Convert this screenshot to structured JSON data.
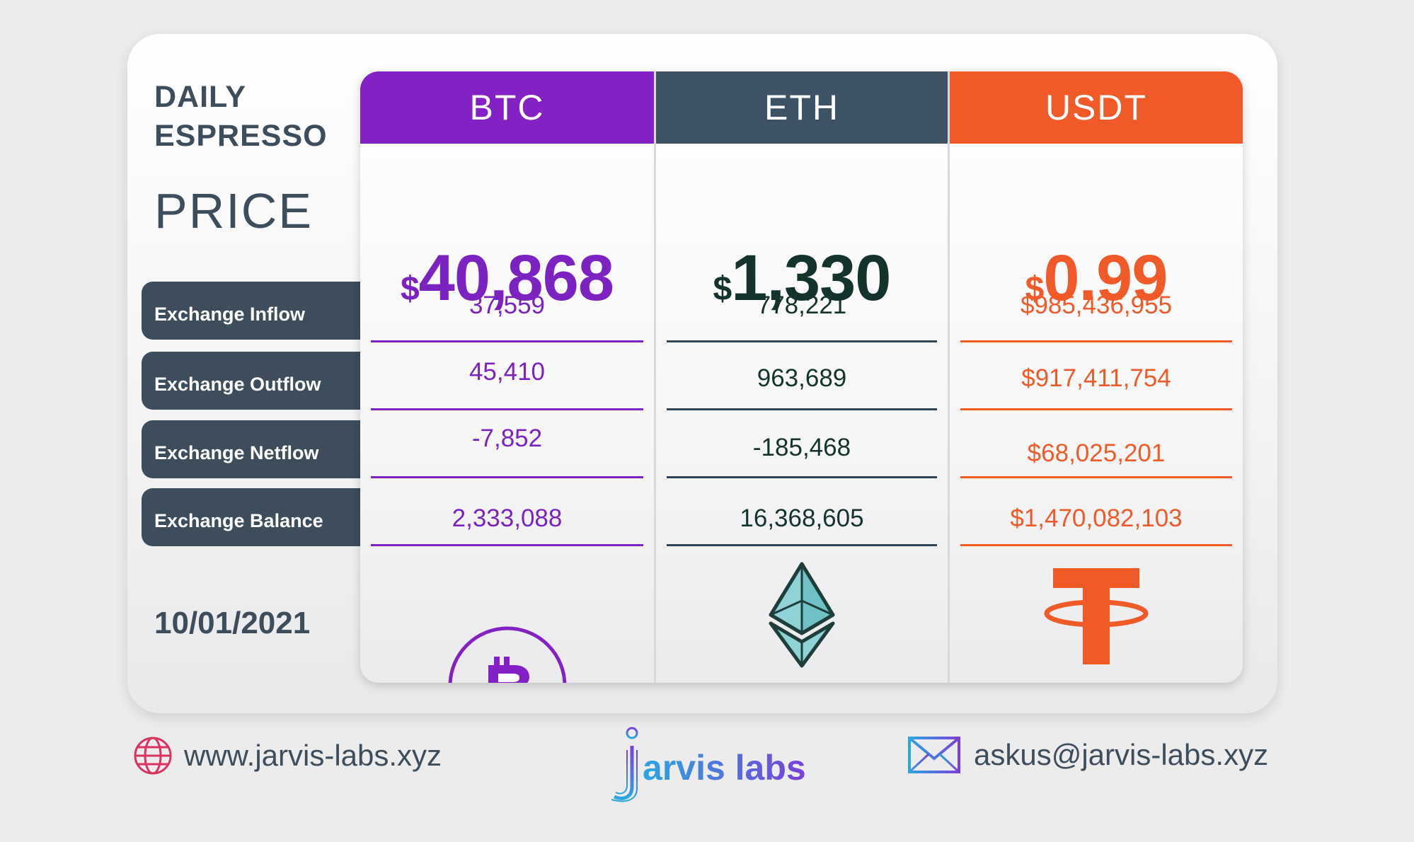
{
  "title": {
    "line1": "DAILY",
    "line2": "ESPRESSO"
  },
  "price_label": "PRICE",
  "date": "10/01/2021",
  "metrics": [
    "Exchange Inflow",
    "Exchange Outflow",
    "Exchange Netflow",
    "Exchange Balance"
  ],
  "columns": [
    {
      "name": "BTC",
      "currency": "$",
      "price": "40,868",
      "header_color": "#8421c4",
      "text_color": "#7b22c0",
      "line_color": "#7b22c0",
      "values": [
        "37,559",
        "45,410",
        "-7,852",
        "2,333,088"
      ],
      "icon": "bitcoin-icon"
    },
    {
      "name": "ETH",
      "currency": "$",
      "price": "1,330",
      "header_color": "#3d5264",
      "text_color": "#15332d",
      "line_color": "#2f4556",
      "values": [
        "778,221",
        "963,689",
        "-185,468",
        "16,368,605"
      ],
      "icon": "ethereum-icon"
    },
    {
      "name": "USDT",
      "currency": "$",
      "price": "0.99",
      "header_color": "#f05a28",
      "text_color": "#f05a28",
      "line_color": "#f05a28",
      "values": [
        "$985,436,955",
        "$917,411,754",
        "$68,025,201",
        "$1,470,082,103"
      ],
      "icon": "tether-icon"
    }
  ],
  "footer": {
    "website": "www.jarvis-labs.xyz",
    "brand": "arvis labs",
    "email": "askus@jarvis-labs.xyz"
  }
}
